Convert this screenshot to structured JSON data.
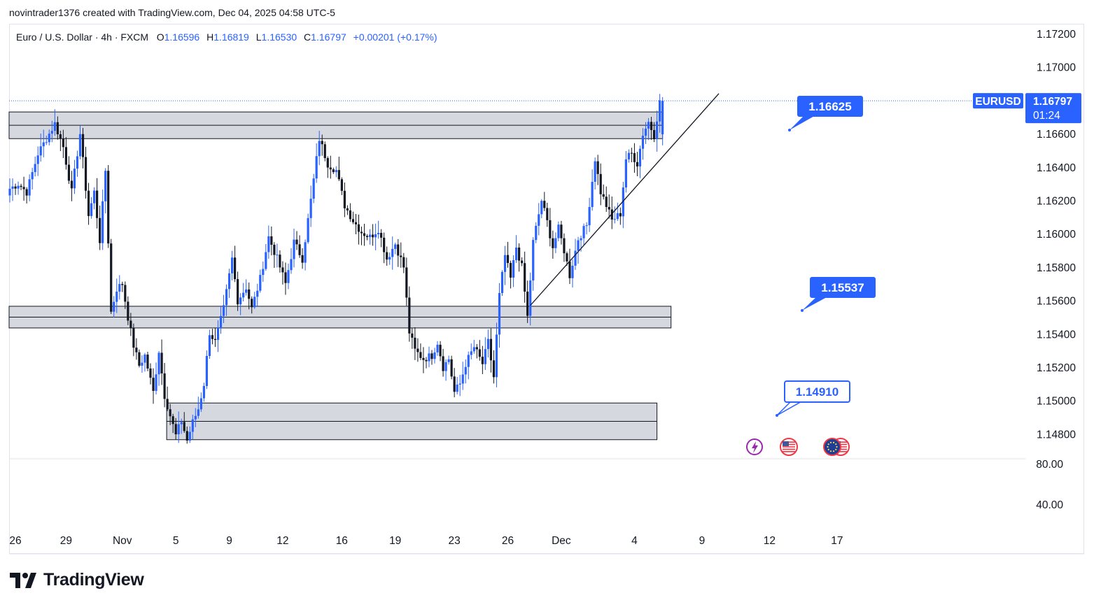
{
  "caption": "novintrader1376 created with TradingView.com, Dec 04, 2025 04:58 UTC-5",
  "legend": {
    "instrument": "Euro / U.S. Dollar · 4h · FXCM",
    "open_label": "O",
    "open": "1.16596",
    "high_label": "H",
    "high": "1.16819",
    "low_label": "L",
    "low": "1.16530",
    "close_label": "C",
    "close": "1.16797",
    "change": "+0.00201 (+0.17%)"
  },
  "price_tag": {
    "symbol": "EURUSD",
    "price": "1.16797",
    "countdown": "01:24"
  },
  "brand": "TradingView",
  "colors": {
    "up": "#2962ff",
    "down": "#131722",
    "zone_fill": "#d1d4dc",
    "tag_bg": "#2962ff"
  },
  "chart_data": {
    "type": "candlestick",
    "title": "Euro / U.S. Dollar · 4h · FXCM",
    "y_ticks": [
      1.172,
      1.17,
      1.166,
      1.164,
      1.162,
      1.16,
      1.158,
      1.156,
      1.154,
      1.152,
      1.15,
      1.148
    ],
    "y_tick_labels": [
      "1.17200",
      "1.17000",
      "1.16600",
      "1.16400",
      "1.16200",
      "1.16000",
      "1.15800",
      "1.15600",
      "1.15400",
      "1.15200",
      "1.15000",
      "1.14800"
    ],
    "ylim": [
      1.147,
      1.1735
    ],
    "x_tick_labels": [
      "26",
      "29",
      "Nov",
      "5",
      "9",
      "12",
      "16",
      "19",
      "23",
      "26",
      "Dec",
      "4",
      "9",
      "12",
      "17"
    ],
    "x_tick_index": [
      0,
      18,
      38,
      57,
      76,
      95,
      116,
      135,
      156,
      175,
      194,
      220,
      244,
      268,
      292
    ],
    "anchors": [
      [
        0,
        1.1627
      ],
      [
        3,
        1.163
      ],
      [
        6,
        1.1625
      ],
      [
        10,
        1.1648
      ],
      [
        13,
        1.1657
      ],
      [
        16,
        1.1666
      ],
      [
        19,
        1.1652
      ],
      [
        22,
        1.1625
      ],
      [
        25,
        1.166
      ],
      [
        28,
        1.1611
      ],
      [
        30,
        1.1625
      ],
      [
        32,
        1.1596
      ],
      [
        34,
        1.1638
      ],
      [
        36,
        1.1553
      ],
      [
        38,
        1.1567
      ],
      [
        40,
        1.157
      ],
      [
        42,
        1.155
      ],
      [
        44,
        1.1533
      ],
      [
        46,
        1.1521
      ],
      [
        48,
        1.1527
      ],
      [
        51,
        1.1505
      ],
      [
        53,
        1.153
      ],
      [
        55,
        1.1503
      ],
      [
        57,
        1.1491
      ],
      [
        59,
        1.1479
      ],
      [
        61,
        1.1488
      ],
      [
        63,
        1.1476
      ],
      [
        65,
        1.1487
      ],
      [
        67,
        1.1495
      ],
      [
        69,
        1.151
      ],
      [
        71,
        1.1541
      ],
      [
        73,
        1.1535
      ],
      [
        76,
        1.1555
      ],
      [
        79,
        1.1585
      ],
      [
        81,
        1.156
      ],
      [
        84,
        1.1568
      ],
      [
        86,
        1.1555
      ],
      [
        89,
        1.1573
      ],
      [
        92,
        1.1598
      ],
      [
        95,
        1.1585
      ],
      [
        98,
        1.157
      ],
      [
        101,
        1.1595
      ],
      [
        104,
        1.1585
      ],
      [
        107,
        1.162
      ],
      [
        110,
        1.1657
      ],
      [
        113,
        1.1642
      ],
      [
        116,
        1.1638
      ],
      [
        119,
        1.1617
      ],
      [
        122,
        1.1608
      ],
      [
        125,
        1.1601
      ],
      [
        128,
        1.1598
      ],
      [
        131,
        1.1603
      ],
      [
        134,
        1.1585
      ],
      [
        137,
        1.1594
      ],
      [
        140,
        1.158
      ],
      [
        142,
        1.1541
      ],
      [
        144,
        1.153
      ],
      [
        147,
        1.1525
      ],
      [
        150,
        1.1527
      ],
      [
        152,
        1.1535
      ],
      [
        154,
        1.152
      ],
      [
        156,
        1.1525
      ],
      [
        158,
        1.1505
      ],
      [
        160,
        1.151
      ],
      [
        162,
        1.1522
      ],
      [
        165,
        1.1532
      ],
      [
        168,
        1.1522
      ],
      [
        170,
        1.1535
      ],
      [
        172,
        1.1514
      ],
      [
        174,
        1.1563
      ],
      [
        176,
        1.1587
      ],
      [
        178,
        1.1573
      ],
      [
        180,
        1.1592
      ],
      [
        182,
        1.158
      ],
      [
        184,
        1.155
      ],
      [
        186,
        1.1595
      ],
      [
        189,
        1.162
      ],
      [
        191,
        1.1607
      ],
      [
        193,
        1.1592
      ],
      [
        195,
        1.1603
      ],
      [
        197,
        1.159
      ],
      [
        199,
        1.1575
      ],
      [
        202,
        1.1597
      ],
      [
        205,
        1.1605
      ],
      [
        208,
        1.1645
      ],
      [
        210,
        1.1625
      ],
      [
        212,
        1.1617
      ],
      [
        214,
        1.1608
      ],
      [
        217,
        1.1612
      ],
      [
        219,
        1.1645
      ],
      [
        221,
        1.1648
      ],
      [
        223,
        1.1642
      ],
      [
        225,
        1.166
      ],
      [
        227,
        1.1667
      ],
      [
        229,
        1.1659
      ],
      [
        231,
        1.168
      ]
    ],
    "last_candle": {
      "open": 1.16596,
      "high": 1.16819,
      "low": 1.1653,
      "close": 1.16797
    },
    "zones": [
      {
        "from": 1.1657,
        "to": 1.1673,
        "mid": 1.1665,
        "start_index": 0,
        "end_index": 232
      },
      {
        "from": 1.15435,
        "to": 1.15565,
        "mid": 1.155,
        "start_index": 0,
        "end_index": 235
      },
      {
        "from": 1.14765,
        "to": 1.14985,
        "mid": 1.14875,
        "start_index": 56,
        "end_index": 230
      }
    ],
    "trendline": [
      [
        185,
        1.1557
      ],
      [
        252,
        1.1684
      ]
    ],
    "price_labels": [
      {
        "text": "1.16625",
        "value": 1.16625,
        "style": "filled"
      },
      {
        "text": "1.15537",
        "value": 1.15537,
        "style": "filled"
      },
      {
        "text": "1.14910",
        "value": 1.1491,
        "style": "outline"
      }
    ],
    "indicator_ticks": [
      "80.00",
      "40.00"
    ],
    "event_markers": [
      "lightning-event",
      "us-flag-event",
      "eu-us-flag-event"
    ]
  }
}
